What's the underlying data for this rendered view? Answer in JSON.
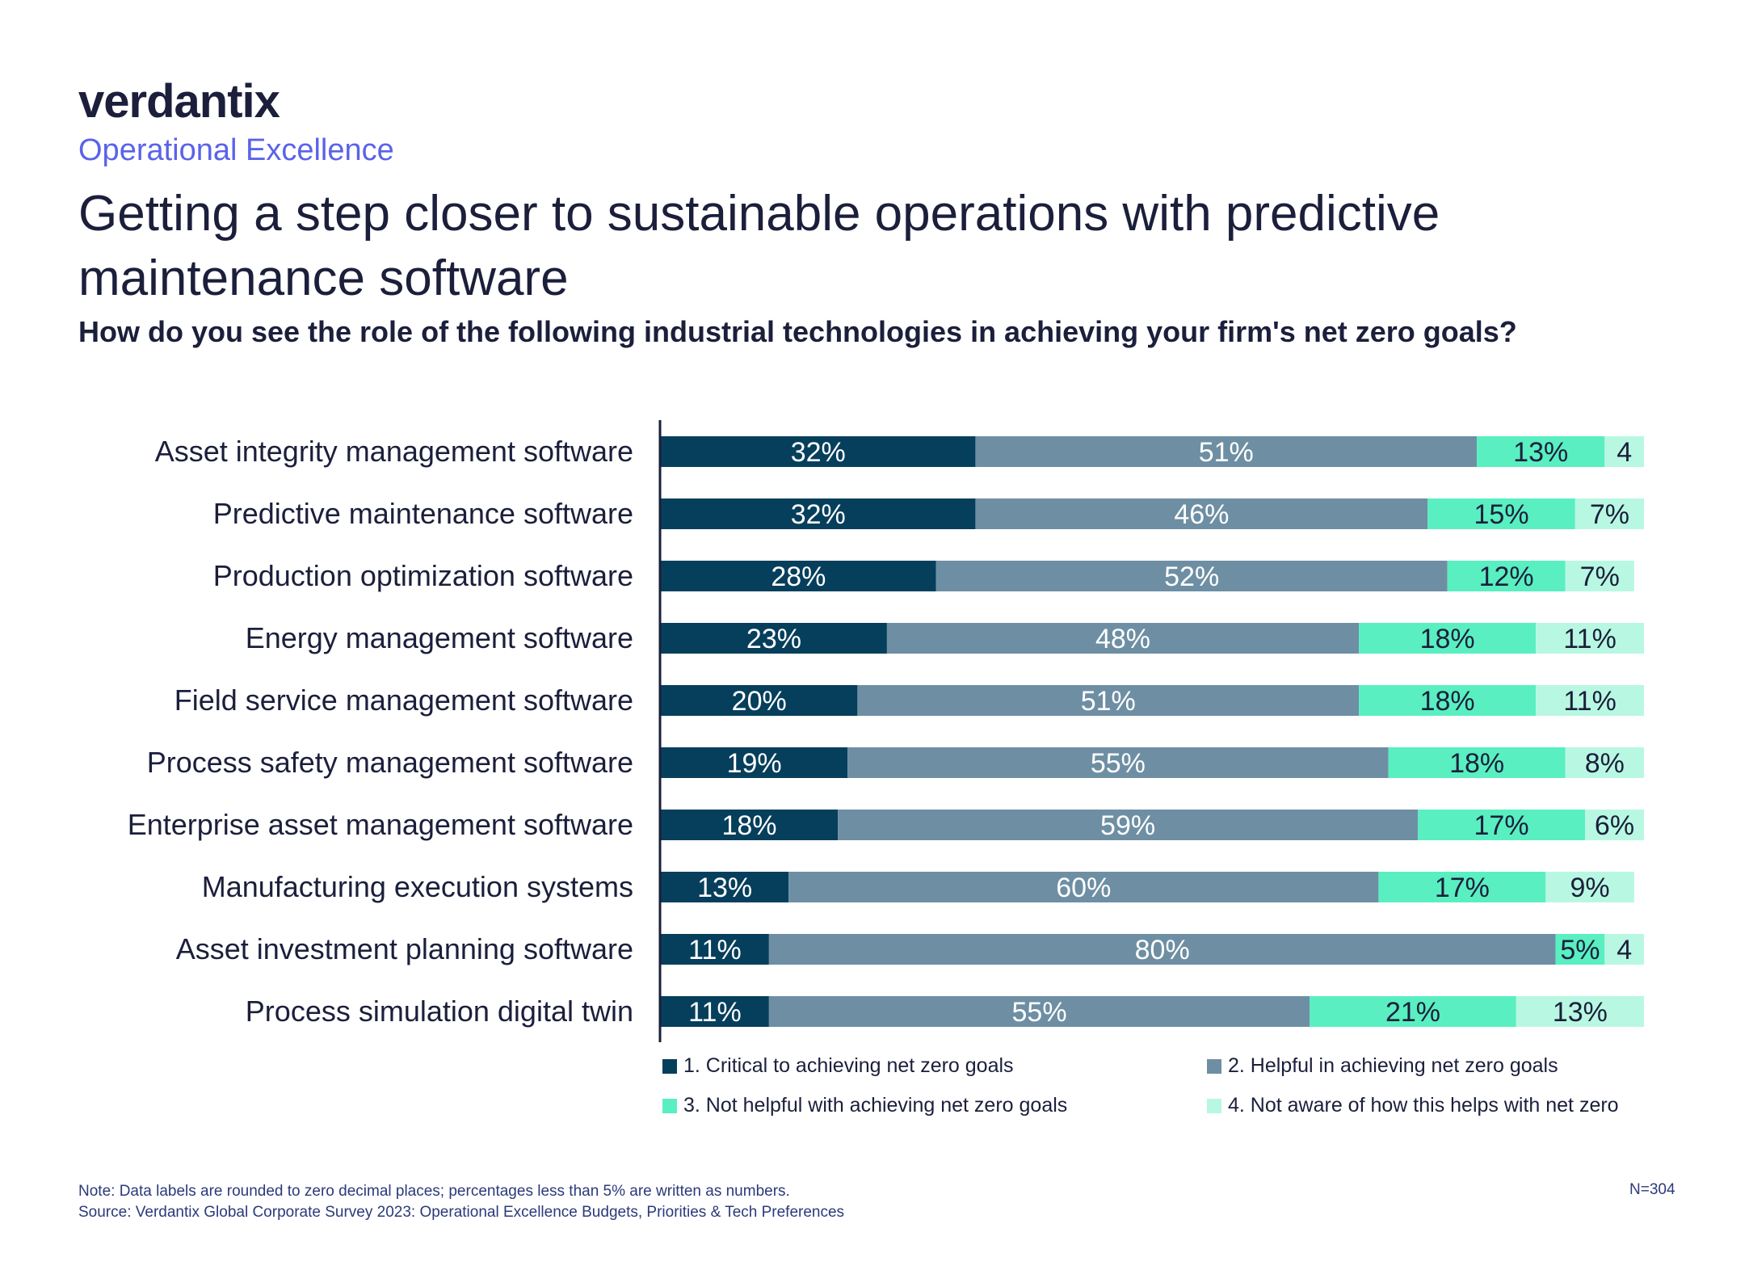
{
  "brand": {
    "logo_text": "verdantix"
  },
  "header": {
    "subtitle": "Operational Excellence",
    "title": "Getting a step closer to sustainable operations with predictive maintenance software",
    "question": "How do you see the role of the following industrial technologies in achieving your firm's net zero goals?"
  },
  "footer": {
    "note": "Note: Data labels are rounded to zero decimal places; percentages less than 5% are written as numbers.",
    "source": "Source: Verdantix Global Corporate Survey 2023: Operational Excellence Budgets, Priorities & Tech Preferences",
    "n": "N=304"
  },
  "chart_data": {
    "type": "bar",
    "orientation": "horizontal",
    "stacked": true,
    "categories": [
      "Asset integrity management software",
      "Predictive maintenance software",
      "Production optimization software",
      "Energy management software",
      "Field service management software",
      "Process safety management software",
      "Enterprise asset management software",
      "Manufacturing execution systems",
      "Asset investment planning software",
      "Process simulation digital twin"
    ],
    "series": [
      {
        "name": "1. Critical to achieving net zero goals",
        "color": "#063f5c",
        "values": [
          32,
          32,
          28,
          23,
          20,
          19,
          18,
          13,
          11,
          11
        ],
        "labels": [
          "32%",
          "32%",
          "28%",
          "23%",
          "20%",
          "19%",
          "18%",
          "13%",
          "11%",
          "11%"
        ]
      },
      {
        "name": "2. Helpful in achieving net zero goals",
        "color": "#6e8fa3",
        "values": [
          51,
          46,
          52,
          48,
          51,
          55,
          59,
          60,
          80,
          55
        ],
        "labels": [
          "51%",
          "46%",
          "52%",
          "48%",
          "51%",
          "55%",
          "59%",
          "60%",
          "80%",
          "55%"
        ]
      },
      {
        "name": "3. Not helpful with achieving net zero goals",
        "color": "#59efc1",
        "values": [
          13,
          15,
          12,
          18,
          18,
          18,
          17,
          17,
          5,
          21
        ],
        "labels": [
          "13%",
          "15%",
          "12%",
          "18%",
          "18%",
          "18%",
          "17%",
          "17%",
          "5%",
          "21%"
        ]
      },
      {
        "name": "4. Not aware of how this helps with net zero",
        "color": "#b8f8e2",
        "values": [
          4,
          7,
          7,
          11,
          11,
          8,
          6,
          9,
          4,
          13
        ],
        "labels": [
          "4",
          "7%",
          "7%",
          "11%",
          "11%",
          "8%",
          "6%",
          "9%",
          "4",
          "13%"
        ]
      }
    ],
    "label_colors": [
      "#ffffff",
      "#ffffff",
      "#1b1f3b",
      "#1b1f3b"
    ],
    "xlim": [
      0,
      100
    ],
    "grid": false,
    "legend_position": "bottom"
  }
}
